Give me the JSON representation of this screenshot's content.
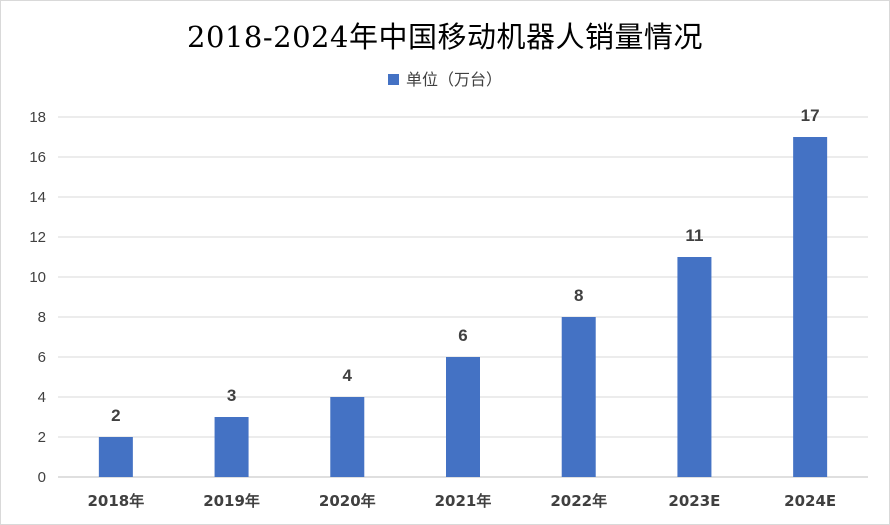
{
  "chart_data": {
    "type": "bar",
    "title": "2018-2024年中国移动机器人销量情况",
    "xlabel": "",
    "ylabel": "",
    "categories": [
      "2018年",
      "2019年",
      "2020年",
      "2021年",
      "2022年",
      "2023E",
      "2024E"
    ],
    "series": [
      {
        "name": "单位（万台）",
        "values": [
          2,
          3,
          4,
          6,
          8,
          11,
          17
        ],
        "color": "#4472C4"
      }
    ],
    "ylim": [
      0,
      18
    ],
    "yticks": [
      0,
      2,
      4,
      6,
      8,
      10,
      12,
      14,
      16,
      18
    ],
    "grid": true,
    "legend_position": "top-center",
    "data_labels": true
  }
}
